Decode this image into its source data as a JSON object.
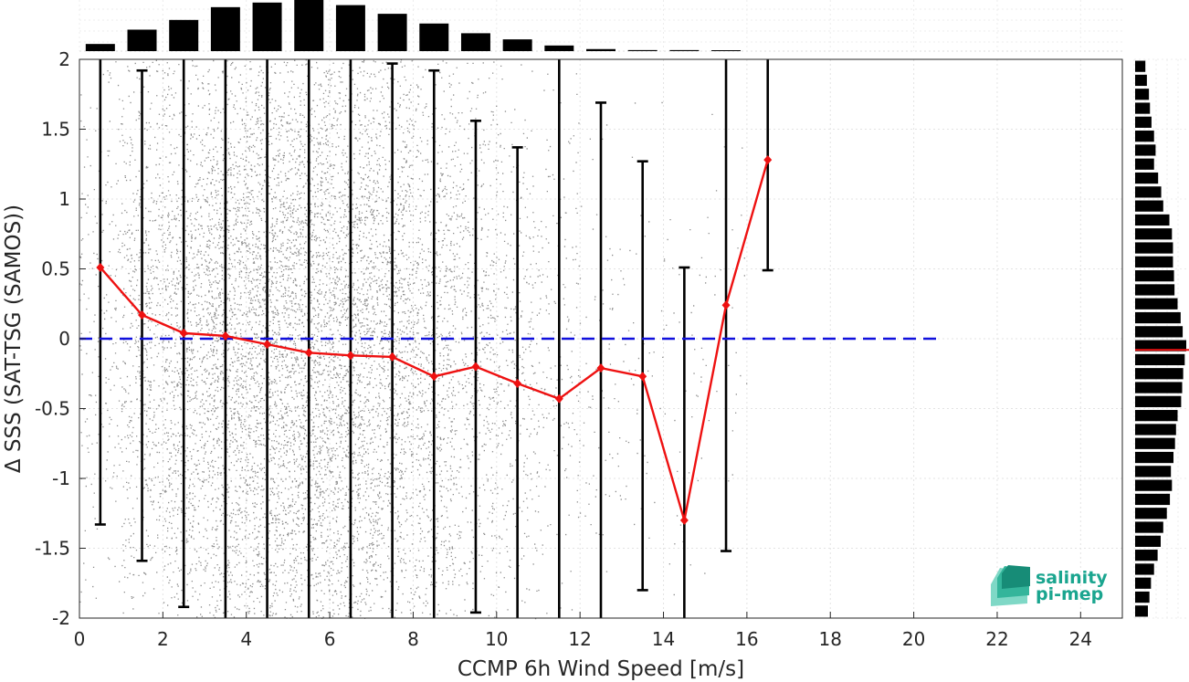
{
  "chart_data": {
    "type": "scatter",
    "xlabel": "CCMP 6h Wind Speed [m/s]",
    "ylabel": "Δ SSS (SAT-TSG (SAMOS))",
    "xlim": [
      0,
      25
    ],
    "ylim": [
      -2,
      2
    ],
    "x_ticks": [
      0,
      2,
      4,
      6,
      8,
      10,
      12,
      14,
      16,
      18,
      20,
      22,
      24
    ],
    "y_ticks": [
      -2,
      -1.5,
      -1,
      -0.5,
      0,
      0.5,
      1,
      1.5,
      2
    ],
    "x_tick_labels": [
      "0",
      "2",
      "4",
      "6",
      "8",
      "10",
      "12",
      "14",
      "16",
      "18",
      "20",
      "22",
      "24"
    ],
    "y_tick_labels": [
      "-2",
      "-1.5",
      "-1",
      "-0.5",
      "0",
      "0.5",
      "1",
      "1.5",
      "2"
    ],
    "grid": true,
    "reference_line": {
      "y": 0,
      "style": "dashed",
      "color": "#1010dd"
    },
    "scatter_color": "#8c8c8c",
    "binned_means": {
      "color": "#ee1111",
      "x": [
        0.5,
        1.5,
        2.5,
        3.5,
        4.5,
        5.5,
        6.5,
        7.5,
        8.5,
        9.5,
        10.5,
        11.5,
        12.5,
        13.5,
        14.5,
        15.5,
        16.5
      ],
      "mean": [
        0.51,
        0.17,
        0.04,
        0.02,
        -0.04,
        -0.1,
        -0.12,
        -0.13,
        -0.27,
        -0.2,
        -0.32,
        -0.43,
        -0.21,
        -0.27,
        -1.3,
        0.24,
        1.28
      ],
      "err_low": [
        -1.33,
        -1.59,
        -1.92,
        -2.0,
        -2.0,
        -2.0,
        -2.0,
        -2.0,
        -2.0,
        -1.96,
        -2.0,
        -2.0,
        -2.0,
        -1.8,
        -2.0,
        -1.52,
        0.49
      ],
      "err_high": [
        2.0,
        1.92,
        2.0,
        2.0,
        2.0,
        2.0,
        2.0,
        1.97,
        1.92,
        1.56,
        1.37,
        2.0,
        1.69,
        1.27,
        0.51,
        2.0,
        2.0
      ]
    },
    "top_histogram": {
      "x": [
        0.5,
        1.5,
        2.5,
        3.5,
        4.5,
        5.5,
        6.5,
        7.5,
        8.5,
        9.5,
        10.5,
        11.5,
        12.5,
        13.5,
        14.5,
        15.5
      ],
      "relative_counts": [
        0.14,
        0.42,
        0.61,
        0.86,
        0.95,
        1.0,
        0.9,
        0.73,
        0.54,
        0.35,
        0.23,
        0.11,
        0.04,
        0.02,
        0.02,
        0.01
      ]
    },
    "right_histogram": {
      "median_marker_y": -0.08,
      "median_marker_color": "#ee1111",
      "bins_y_center": [
        1.95,
        1.85,
        1.75,
        1.65,
        1.55,
        1.45,
        1.35,
        1.25,
        1.15,
        1.05,
        0.95,
        0.85,
        0.75,
        0.65,
        0.55,
        0.45,
        0.35,
        0.25,
        0.15,
        0.05,
        -0.05,
        -0.15,
        -0.25,
        -0.35,
        -0.45,
        -0.55,
        -0.65,
        -0.75,
        -0.85,
        -0.95,
        -1.05,
        -1.15,
        -1.25,
        -1.35,
        -1.45,
        -1.55,
        -1.65,
        -1.75,
        -1.85,
        -1.95
      ],
      "relative_counts": [
        0.2,
        0.23,
        0.27,
        0.29,
        0.32,
        0.37,
        0.4,
        0.37,
        0.45,
        0.51,
        0.55,
        0.67,
        0.72,
        0.74,
        0.74,
        0.76,
        0.77,
        0.83,
        0.89,
        0.93,
        1.0,
        0.97,
        0.94,
        0.92,
        0.9,
        0.83,
        0.8,
        0.78,
        0.75,
        0.7,
        0.72,
        0.68,
        0.62,
        0.55,
        0.5,
        0.44,
        0.37,
        0.31,
        0.28,
        0.25
      ]
    }
  },
  "logo": {
    "line1": "salinity",
    "line2": "pi-mep",
    "color": "#1aa58f"
  }
}
